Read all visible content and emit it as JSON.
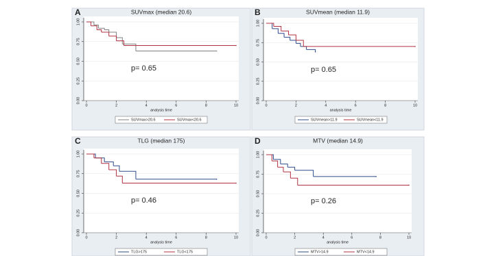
{
  "chart_data": [
    {
      "type": "line",
      "drawstyle": "steps-post",
      "panel_label": "A",
      "title": "SUVmax (median 20.6)",
      "xlabel": "analysis time",
      "annotation": "p= 0.65",
      "xlim": [
        0,
        10
      ],
      "ylim": [
        0,
        1
      ],
      "xticks": [
        0,
        2,
        4,
        6,
        8,
        10
      ],
      "yticks": [
        {
          "value": 0,
          "label": "0.00"
        },
        {
          "value": 0.25,
          "label": "0.25"
        },
        {
          "value": 0.5,
          "label": "0.50"
        },
        {
          "value": 0.75,
          "label": "0.75"
        },
        {
          "value": 1,
          "label": "1.00"
        }
      ],
      "series": [
        {
          "name": "SUVmax>20.6",
          "color": "#808080",
          "x": [
            0,
            0.5,
            0.8,
            1.2,
            1.5,
            2.0,
            2.4,
            3.3,
            8.7
          ],
          "values": [
            1,
            0.96,
            0.92,
            0.9,
            0.87,
            0.8,
            0.72,
            0.63,
            0.63
          ]
        },
        {
          "name": "SUVmax<20.6",
          "color": "#b03040",
          "x": [
            0,
            0.3,
            0.7,
            1.0,
            1.5,
            2.0,
            2.5,
            10
          ],
          "values": [
            1,
            0.95,
            0.9,
            0.87,
            0.82,
            0.76,
            0.7,
            0.7
          ]
        }
      ]
    },
    {
      "type": "line",
      "drawstyle": "steps-post",
      "panel_label": "B",
      "title": "SUVmean (median 11.9)",
      "xlabel": "analysis time",
      "annotation": "p= 0.65",
      "xlim": [
        0,
        10
      ],
      "ylim": [
        0,
        1
      ],
      "xticks": [
        0,
        2,
        4,
        6,
        8,
        10
      ],
      "yticks": [
        {
          "value": 0,
          "label": "0.00"
        },
        {
          "value": 0.25,
          "label": "0.25"
        },
        {
          "value": 0.5,
          "label": "0.50"
        },
        {
          "value": 0.75,
          "label": "0.75"
        },
        {
          "value": 1,
          "label": "1.00"
        }
      ],
      "series": [
        {
          "name": "SUVmean>11.9",
          "color": "#2e4a8a",
          "x": [
            0,
            0.4,
            0.8,
            1.2,
            1.6,
            2.0,
            2.3,
            2.7,
            3.3
          ],
          "values": [
            1,
            0.93,
            0.87,
            0.82,
            0.78,
            0.74,
            0.7,
            0.66,
            0.63
          ]
        },
        {
          "name": "SUVmean<11.9",
          "color": "#b03040",
          "x": [
            0,
            0.5,
            1.0,
            1.5,
            2.0,
            2.5,
            10
          ],
          "values": [
            1,
            0.96,
            0.9,
            0.85,
            0.78,
            0.7,
            0.7
          ]
        }
      ]
    },
    {
      "type": "line",
      "drawstyle": "steps-post",
      "panel_label": "C",
      "title": "TLG (median 175)",
      "xlabel": "analysis time",
      "annotation": "p= 0.46",
      "xlim": [
        0,
        10
      ],
      "ylim": [
        0,
        1
      ],
      "xticks": [
        0,
        2,
        4,
        6,
        8,
        10
      ],
      "yticks": [
        {
          "value": 0,
          "label": "0.00"
        },
        {
          "value": 0.25,
          "label": "0.25"
        },
        {
          "value": 0.5,
          "label": "0.50"
        },
        {
          "value": 0.75,
          "label": "0.75"
        },
        {
          "value": 1,
          "label": "1.00"
        }
      ],
      "series": [
        {
          "name": "TLG>175",
          "color": "#2e4a8a",
          "x": [
            0,
            0.6,
            1.2,
            1.8,
            2.2,
            3.3,
            8.7
          ],
          "values": [
            1,
            0.95,
            0.9,
            0.85,
            0.78,
            0.68,
            0.68
          ]
        },
        {
          "name": "TLG<175",
          "color": "#b03040",
          "x": [
            0,
            0.5,
            1.0,
            1.5,
            2.0,
            2.4,
            10
          ],
          "values": [
            1,
            0.95,
            0.88,
            0.8,
            0.72,
            0.63,
            0.63
          ]
        }
      ]
    },
    {
      "type": "line",
      "drawstyle": "steps-post",
      "panel_label": "D",
      "title": "MTV (median 14.9)",
      "xlabel": "analysis time",
      "annotation": "p= 0.26",
      "xlim": [
        0,
        10
      ],
      "ylim": [
        0,
        1
      ],
      "xticks": [
        0,
        2,
        4,
        6,
        8,
        10
      ],
      "yticks": [
        {
          "value": 0,
          "label": "0.00"
        },
        {
          "value": 0.25,
          "label": "0.25"
        },
        {
          "value": 0.5,
          "label": "0.50"
        },
        {
          "value": 0.75,
          "label": "0.75"
        },
        {
          "value": 1,
          "label": "1.00"
        }
      ],
      "series": [
        {
          "name": "MTV>14.9",
          "color": "#2e4a8a",
          "x": [
            0,
            0.5,
            1.0,
            1.5,
            2.0,
            3.3,
            7.7
          ],
          "values": [
            1,
            0.94,
            0.88,
            0.84,
            0.8,
            0.72,
            0.72
          ]
        },
        {
          "name": "MTV<14.9",
          "color": "#b03040",
          "x": [
            0,
            0.4,
            0.8,
            1.2,
            1.7,
            2.2,
            10
          ],
          "values": [
            1,
            0.92,
            0.84,
            0.78,
            0.7,
            0.61,
            0.61
          ]
        }
      ]
    }
  ]
}
